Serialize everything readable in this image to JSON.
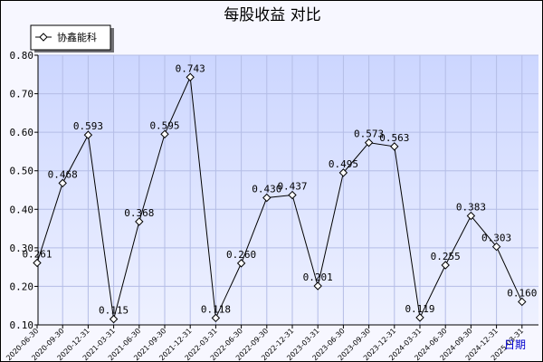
{
  "chart_data": {
    "type": "line",
    "title": "每股收益  对比",
    "xlabel": "日期",
    "ylabel": "",
    "ylim": [
      0.1,
      0.8
    ],
    "yticks": [
      "0.10",
      "0.20",
      "0.30",
      "0.40",
      "0.50",
      "0.60",
      "0.70",
      "0.80"
    ],
    "grid": true,
    "legend_position": "top-left",
    "categories": [
      "2020-06-30",
      "2020-09-30",
      "2020-12-31",
      "2021-03-31",
      "2021-06-30",
      "2021-09-30",
      "2021-12-31",
      "2022-03-31",
      "2022-06-30",
      "2022-09-30",
      "2022-12-31",
      "2023-03-31",
      "2023-06-30",
      "2023-09-30",
      "2023-12-31",
      "2024-03-31",
      "2024-06-30",
      "2024-09-30",
      "2024-12-31",
      "2025-03-31"
    ],
    "series": [
      {
        "name": "协鑫能科",
        "values": [
          0.261,
          0.468,
          0.593,
          0.115,
          0.368,
          0.595,
          0.743,
          0.118,
          0.26,
          0.43,
          0.437,
          0.201,
          0.495,
          0.573,
          0.563,
          0.119,
          0.255,
          0.383,
          0.303,
          0.16
        ],
        "labels": [
          "0.261",
          "0.468",
          "0.593",
          "0.115",
          "0.368",
          "0.595",
          "0.743",
          "0.118",
          "0.260",
          "0.430",
          "0.437",
          "0.201",
          "0.495",
          "0.573",
          "0.563",
          "0.119",
          "0.255",
          "0.383",
          "0.303",
          "0.160"
        ]
      }
    ]
  },
  "colors": {
    "plot_background_top": "#ccd6ff",
    "plot_background_bottom": "#eef1ff",
    "grid": "#b4bde6",
    "line": "#000000",
    "marker_fill": "#ffffff",
    "frame_background": "#f7f7ff",
    "xlabel_color": "#0000cc"
  }
}
